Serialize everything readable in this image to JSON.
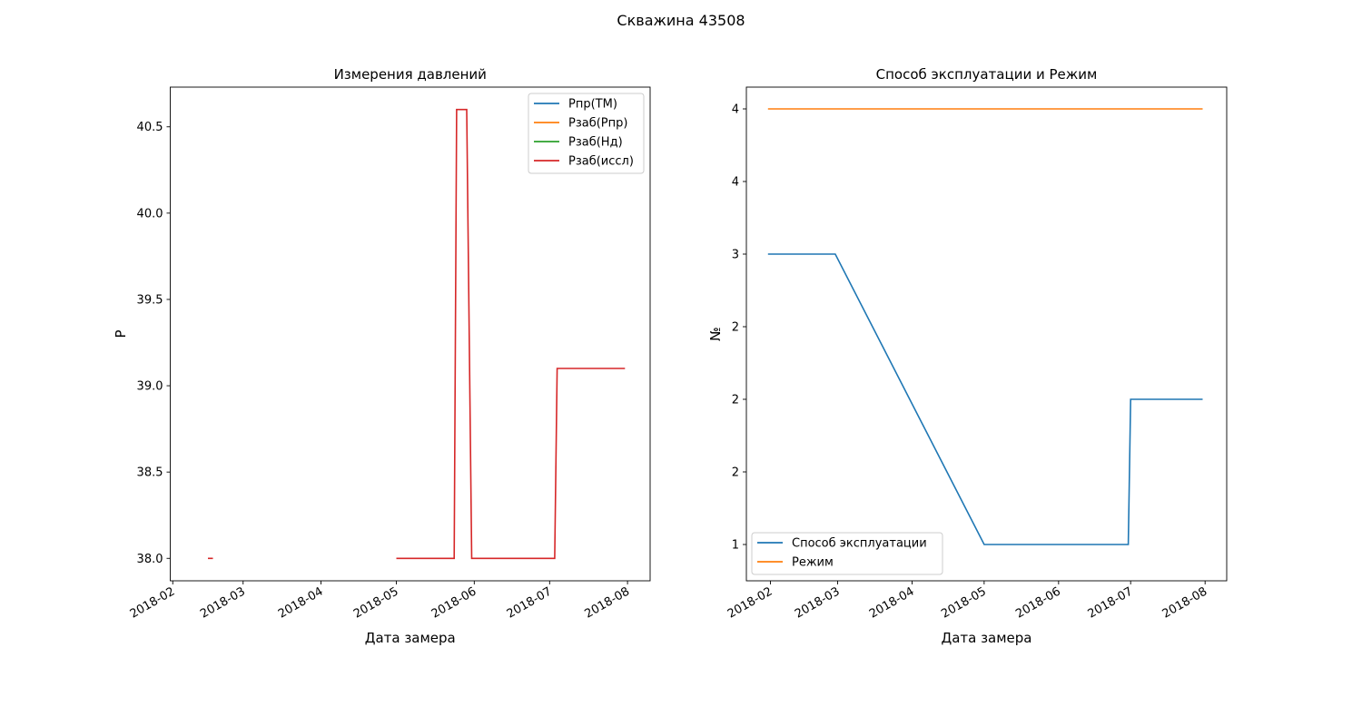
{
  "figure": {
    "title": "Скважина 43508"
  },
  "chart_data": [
    {
      "type": "line",
      "title": "Измерения давлений",
      "xlabel": "Дата замера",
      "ylabel": "P",
      "x_type": "date",
      "xlim": [
        "2018-01-31",
        "2018-08-10"
      ],
      "ylim": [
        37.87,
        40.73
      ],
      "x_ticks": [
        "2018-02-01",
        "2018-03-01",
        "2018-04-01",
        "2018-05-01",
        "2018-06-01",
        "2018-07-01",
        "2018-08-01"
      ],
      "x_tick_labels": [
        "2018-02",
        "2018-03",
        "2018-04",
        "2018-05",
        "2018-06",
        "2018-07",
        "2018-08"
      ],
      "y_ticks": [
        38.0,
        38.5,
        39.0,
        39.5,
        40.0,
        40.5
      ],
      "y_tick_labels": [
        "38.0",
        "38.5",
        "39.0",
        "39.5",
        "40.0",
        "40.5"
      ],
      "grid": false,
      "legend": "top-right",
      "series": [
        {
          "name": "Pпр(ТМ)",
          "color": "#1f77b4",
          "segments": []
        },
        {
          "name": "Pзаб(Pпр)",
          "color": "#ff7f0e",
          "segments": []
        },
        {
          "name": "Pзаб(Нд)",
          "color": "#2ca02c",
          "segments": []
        },
        {
          "name": "Pзаб(иссл)",
          "color": "#d62728",
          "segments": [
            [
              {
                "x": "2018-02-15",
                "y": 38.0
              },
              {
                "x": "2018-02-17",
                "y": 38.0
              }
            ],
            [
              {
                "x": "2018-05-01",
                "y": 38.0
              },
              {
                "x": "2018-05-24",
                "y": 38.0
              },
              {
                "x": "2018-05-25",
                "y": 40.6
              },
              {
                "x": "2018-05-29",
                "y": 40.6
              },
              {
                "x": "2018-05-31",
                "y": 38.0
              },
              {
                "x": "2018-07-03",
                "y": 38.0
              },
              {
                "x": "2018-07-04",
                "y": 39.1
              },
              {
                "x": "2018-07-31",
                "y": 39.1
              }
            ]
          ]
        }
      ]
    },
    {
      "type": "line",
      "title": "Способ эксплуатации и Режим",
      "xlabel": "Дата замера",
      "ylabel": "№",
      "x_type": "date",
      "xlim": [
        "2018-01-22",
        "2018-08-10"
      ],
      "ylim": [
        0.75,
        4.15
      ],
      "x_ticks": [
        "2018-02-01",
        "2018-03-01",
        "2018-04-01",
        "2018-05-01",
        "2018-06-01",
        "2018-07-01",
        "2018-08-01"
      ],
      "x_tick_labels": [
        "2018-02",
        "2018-03",
        "2018-04",
        "2018-05",
        "2018-06",
        "2018-07",
        "2018-08"
      ],
      "y_ticks": [
        1.0,
        1.5,
        2.0,
        2.5,
        3.0,
        3.5,
        4.0
      ],
      "y_tick_labels": [
        "1",
        "2",
        "2",
        "2",
        "3",
        "4",
        "4"
      ],
      "grid": false,
      "legend": "bottom-left",
      "series": [
        {
          "name": "Способ эксплуатации",
          "color": "#1f77b4",
          "segments": [
            [
              {
                "x": "2018-01-31",
                "y": 3
              },
              {
                "x": "2018-02-28",
                "y": 3
              },
              {
                "x": "2018-05-01",
                "y": 1
              },
              {
                "x": "2018-06-30",
                "y": 1
              },
              {
                "x": "2018-07-01",
                "y": 2
              },
              {
                "x": "2018-07-31",
                "y": 2
              }
            ]
          ]
        },
        {
          "name": "Режим",
          "color": "#ff7f0e",
          "segments": [
            [
              {
                "x": "2018-01-31",
                "y": 4
              },
              {
                "x": "2018-07-31",
                "y": 4
              }
            ]
          ]
        }
      ]
    }
  ]
}
